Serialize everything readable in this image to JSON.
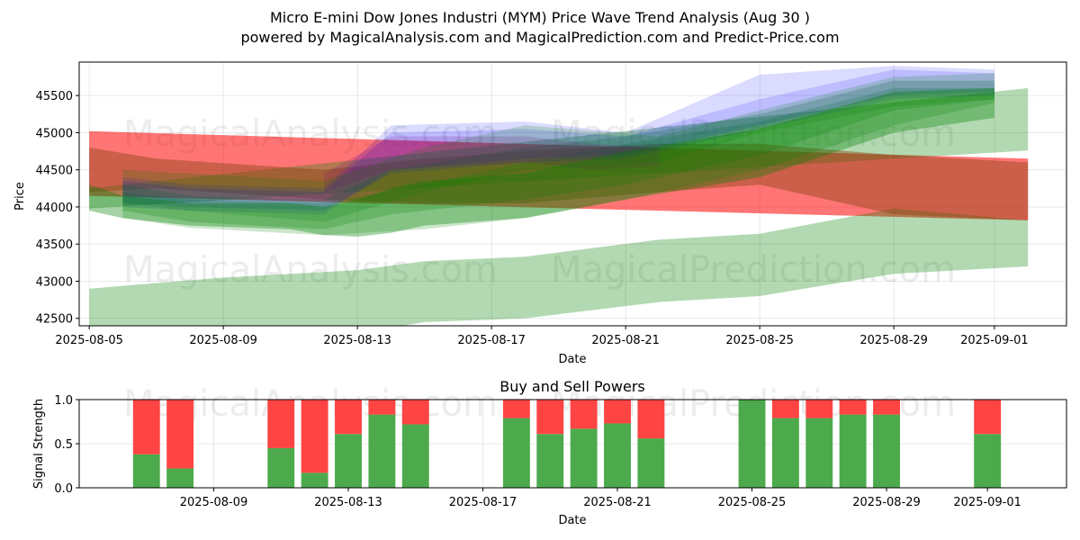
{
  "chart_data": [
    {
      "type": "area",
      "title": "Micro E-mini Dow Jones Industri (MYM) Price Wave Trend Analysis (Aug 30 )",
      "subtitle": "powered by MagicalAnalysis.com and MagicalPrediction.com and Predict-Price.com",
      "xlabel": "Date",
      "ylabel": "Price",
      "xlim": [
        "2025-08-04",
        "2025-09-03"
      ],
      "ylim": [
        42400,
        45950
      ],
      "x_ticks": [
        "2025-08-05",
        "2025-08-09",
        "2025-08-13",
        "2025-08-17",
        "2025-08-21",
        "2025-08-25",
        "2025-08-29",
        "2025-09-01"
      ],
      "y_ticks": [
        42500,
        43000,
        43500,
        44000,
        44500,
        45000,
        45500
      ],
      "grid": true,
      "watermarks": [
        "MagicalAnalysis.com",
        "MagicalPrediction.com"
      ],
      "bands": [
        {
          "color": "#ff0000",
          "opacity": 0.32,
          "x": [
            "2025-08-05",
            "2025-09-02"
          ],
          "upper": [
            45020,
            44650
          ],
          "lower": [
            44150,
            43820
          ]
        },
        {
          "color": "#ff0000",
          "opacity": 0.32,
          "x": [
            "2025-08-05",
            "2025-09-02"
          ],
          "upper": [
            45020,
            44650
          ],
          "lower": [
            44150,
            43820
          ]
        },
        {
          "color": "#008000",
          "opacity": 0.3,
          "x": [
            "2025-08-05",
            "2025-08-09",
            "2025-08-13",
            "2025-08-15",
            "2025-08-18",
            "2025-08-22",
            "2025-08-25",
            "2025-08-29",
            "2025-09-02"
          ],
          "upper": [
            42900,
            43050,
            43150,
            43270,
            43330,
            43560,
            43640,
            43980,
            43820
          ],
          "lower": [
            42300,
            42300,
            42300,
            42450,
            42500,
            42720,
            42800,
            43100,
            43200
          ]
        },
        {
          "color": "#008000",
          "opacity": 0.3,
          "x": [
            "2025-08-05",
            "2025-09-02"
          ],
          "upper": [
            44250,
            45600
          ],
          "lower": [
            43980,
            44760
          ]
        },
        {
          "color": "#8b4513",
          "opacity": 0.45,
          "x": [
            "2025-08-05",
            "2025-08-07",
            "2025-08-12",
            "2025-08-15",
            "2025-08-18",
            "2025-08-22",
            "2025-08-25",
            "2025-08-29",
            "2025-09-02"
          ],
          "upper": [
            44800,
            44650,
            44500,
            44650,
            44750,
            44850,
            44850,
            44700,
            44600
          ],
          "lower": [
            44200,
            44250,
            44100,
            44050,
            44050,
            44200,
            44300,
            43900,
            43820
          ]
        },
        {
          "color": "#008000",
          "opacity": 0.2,
          "x": [
            "2025-08-06",
            "2025-08-08",
            "2025-08-12",
            "2025-08-15",
            "2025-08-18",
            "2025-08-21",
            "2025-08-25",
            "2025-08-29",
            "2025-09-01"
          ],
          "upper": [
            44200,
            44100,
            44050,
            44300,
            44600,
            44850,
            45150,
            45600,
            45600
          ],
          "lower": [
            43850,
            43720,
            43620,
            43700,
            43850,
            44100,
            44500,
            45100,
            45400
          ]
        },
        {
          "color": "#008000",
          "opacity": 0.22,
          "x": [
            "2025-08-06",
            "2025-08-08",
            "2025-08-12",
            "2025-08-14",
            "2025-08-18",
            "2025-08-21",
            "2025-08-25",
            "2025-08-29",
            "2025-09-01"
          ],
          "upper": [
            44300,
            44150,
            44100,
            44500,
            44800,
            44950,
            45250,
            45700,
            45700
          ],
          "lower": [
            43950,
            43800,
            43700,
            43900,
            44100,
            44300,
            44700,
            45300,
            45450
          ]
        },
        {
          "color": "#0000ff",
          "opacity": 0.14,
          "x": [
            "2025-08-06",
            "2025-08-08",
            "2025-08-12",
            "2025-08-14",
            "2025-08-18",
            "2025-08-21",
            "2025-08-25",
            "2025-08-29",
            "2025-09-01"
          ],
          "upper": [
            44400,
            44300,
            44250,
            45100,
            45150,
            45000,
            45780,
            45900,
            45850
          ],
          "lower": [
            44000,
            43950,
            43900,
            44500,
            44650,
            44700,
            45100,
            45500,
            45550
          ]
        },
        {
          "color": "#0000ff",
          "opacity": 0.14,
          "x": [
            "2025-08-06",
            "2025-08-08",
            "2025-08-12",
            "2025-08-14",
            "2025-08-18",
            "2025-08-21",
            "2025-08-25",
            "2025-08-29",
            "2025-09-01"
          ],
          "upper": [
            44350,
            44250,
            44200,
            45000,
            45050,
            44950,
            45450,
            45850,
            45800
          ],
          "lower": [
            44050,
            44000,
            43950,
            44450,
            44600,
            44650,
            45050,
            45450,
            45500
          ]
        },
        {
          "color": "#800080",
          "opacity": 0.18,
          "x": [
            "2025-08-12",
            "2025-08-14",
            "2025-08-18",
            "2025-08-20",
            "2025-08-22"
          ],
          "upper": [
            44450,
            44950,
            44950,
            44850,
            44800
          ],
          "lower": [
            44200,
            44500,
            44600,
            44500,
            44550
          ]
        },
        {
          "color": "#008000",
          "opacity": 0.18,
          "x": [
            "2025-08-06",
            "2025-08-08",
            "2025-08-12",
            "2025-08-15",
            "2025-08-18",
            "2025-08-22",
            "2025-08-25",
            "2025-08-29",
            "2025-09-01"
          ],
          "upper": [
            44500,
            44450,
            44350,
            44800,
            45100,
            44950,
            45300,
            45750,
            45800
          ],
          "lower": [
            44050,
            43950,
            43800,
            44200,
            44500,
            44600,
            45000,
            45350,
            45450
          ]
        },
        {
          "color": "#008000",
          "opacity": 0.35,
          "x": [
            "2025-08-05",
            "2025-08-06",
            "2025-08-08",
            "2025-08-11",
            "2025-08-12",
            "2025-08-13",
            "2025-08-14",
            "2025-08-15",
            "2025-08-18",
            "2025-08-21",
            "2025-08-25",
            "2025-08-29",
            "2025-09-01"
          ],
          "upper": [
            44300,
            44150,
            44050,
            44050,
            44000,
            44100,
            44250,
            44350,
            44450,
            44750,
            45050,
            45550,
            45600
          ],
          "lower": [
            43950,
            43850,
            43750,
            43700,
            43620,
            43600,
            43650,
            43750,
            43850,
            44100,
            44400,
            45000,
            45200
          ]
        }
      ]
    },
    {
      "type": "bar",
      "title": "Buy and Sell Powers",
      "xlabel": "Date",
      "ylabel": "Signal Strength",
      "ylim": [
        0,
        1
      ],
      "y_ticks": [
        0.0,
        0.5,
        1.0
      ],
      "x_ticks": [
        "2025-08-09",
        "2025-08-13",
        "2025-08-17",
        "2025-08-21",
        "2025-08-25",
        "2025-08-29",
        "2025-09-01"
      ],
      "grid": true,
      "series": [
        {
          "name": "",
          "color": "#4caa4c",
          "values": [
            0.38,
            0.22,
            0.45,
            0.17,
            0.61,
            0.83,
            0.72,
            0.79,
            0.61,
            0.67,
            0.73,
            0.56,
            1.0,
            0.79,
            0.79,
            0.83,
            0.83,
            0.61
          ]
        },
        {
          "name": "",
          "color": "#ff4444",
          "values": [
            0.62,
            0.78,
            0.55,
            0.83,
            0.39,
            0.17,
            0.28,
            0.21,
            0.39,
            0.33,
            0.27,
            0.44,
            0.0,
            0.21,
            0.21,
            0.17,
            0.17,
            0.39
          ]
        }
      ],
      "categories": [
        "2025-08-07",
        "2025-08-08",
        "2025-08-11",
        "2025-08-12",
        "2025-08-13",
        "2025-08-14",
        "2025-08-15",
        "2025-08-18",
        "2025-08-19",
        "2025-08-20",
        "2025-08-21",
        "2025-08-22",
        "2025-08-25",
        "2025-08-26",
        "2025-08-27",
        "2025-08-28",
        "2025-08-29",
        "2025-09-01"
      ]
    }
  ]
}
